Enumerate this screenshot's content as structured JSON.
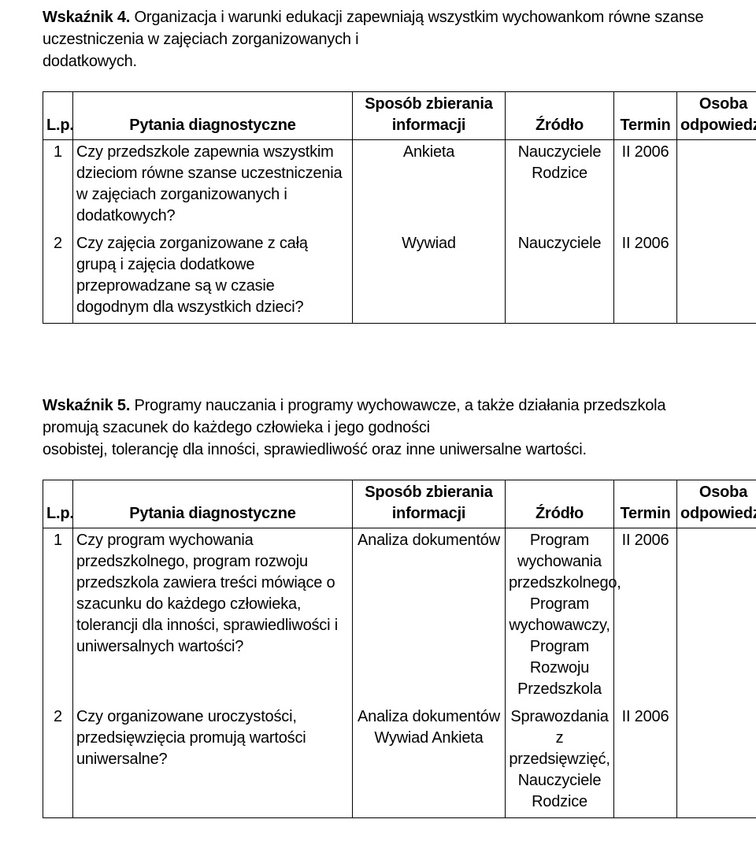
{
  "headers": {
    "lp": "L.p.",
    "q": "Pytania diagnostyczne",
    "method": "Sposób zbierania informacji",
    "source": "Źródło",
    "term": "Termin",
    "resp": "Osoba odpowiedzialna"
  },
  "section4": {
    "label": "Wskaźnik  4.",
    "text_line1": " Organizacja i warunki edukacji zapewniają wszystkim wychowankom równe szanse uczestniczenia w zajęciach zorganizowanych i",
    "text_line2": "dodatkowych.",
    "rows": [
      {
        "lp": "1",
        "q": "Czy przedszkole zapewnia wszystkim dzieciom równe szanse uczestniczenia w zajęciach zorganizowanych i dodatkowych?",
        "method": "Ankieta",
        "source": "Nauczyciele Rodzice",
        "term": "II 2006",
        "resp": ""
      },
      {
        "lp": "2",
        "q": "Czy zajęcia zorganizowane z całą grupą i zajęcia dodatkowe przeprowadzane są w czasie dogodnym dla wszystkich dzieci?",
        "method": "Wywiad",
        "source": "Nauczyciele",
        "term": "II  2006",
        "resp": ""
      }
    ]
  },
  "section5": {
    "label": "Wskaźnik 5.",
    "text_line1": " Programy nauczania i programy wychowawcze, a także działania przedszkola promują szacunek do każdego człowieka i jego godności",
    "text_line2": "osobistej, tolerancję dla inności, sprawiedliwość oraz inne uniwersalne wartości.",
    "rows": [
      {
        "lp": "1",
        "q": "Czy program wychowania przedszkolnego, program rozwoju przedszkola zawiera treści mówiące o szacunku do każdego człowieka, tolerancji dla inności, sprawiedliwości i uniwersalnych wartości?",
        "method": "Analiza dokumentów",
        "source": "Program wychowania przedszkolnego, Program wychowawczy, Program Rozwoju Przedszkola",
        "term": "II  2006",
        "resp": ""
      },
      {
        "lp": "2",
        "q": "Czy organizowane uroczystości, przedsięwzięcia promują wartości uniwersalne?",
        "method": "Analiza dokumentów Wywiad Ankieta",
        "source": "Sprawozdania z przedsięwzięć, Nauczyciele Rodzice",
        "term": "II  2006",
        "resp": ""
      }
    ]
  }
}
